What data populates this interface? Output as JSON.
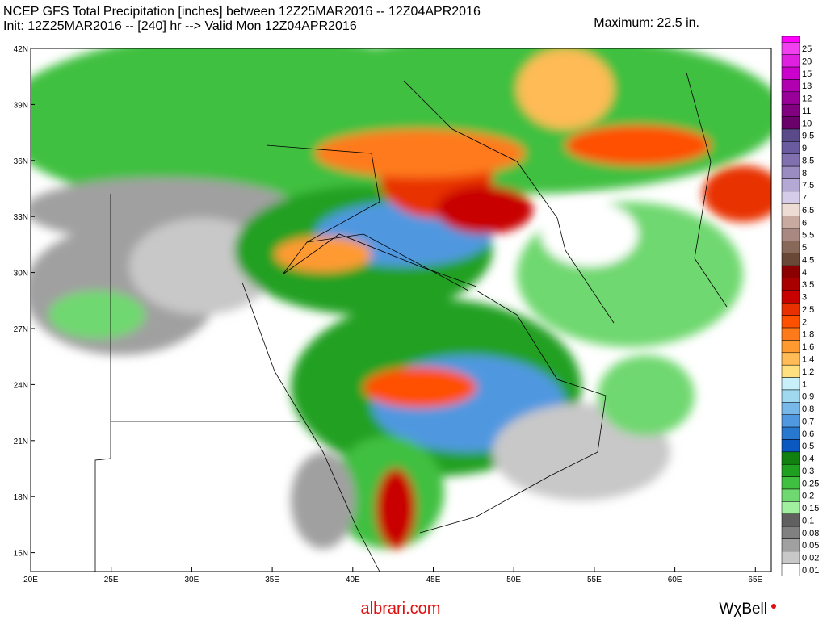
{
  "header": {
    "title_line1": "NCEP GFS Total Precipitation [inches] between 12Z25MAR2016 -- 12Z04APR2016",
    "title_line2": "Init: 12Z25MAR2016 -- [240] hr --> Valid Mon 12Z04APR2016",
    "maximum": "Maximum: 22.5 in."
  },
  "map": {
    "lat_labels": [
      "42N",
      "39N",
      "36N",
      "33N",
      "30N",
      "27N",
      "24N",
      "21N",
      "18N",
      "15N"
    ],
    "lon_labels": [
      "20E",
      "25E",
      "30E",
      "35E",
      "40E",
      "45E",
      "50E",
      "55E",
      "60E",
      "65E"
    ]
  },
  "colorbar": [
    {
      "label": "25",
      "color": "#f040f0"
    },
    {
      "label": "20",
      "color": "#e020e0"
    },
    {
      "label": "15",
      "color": "#cc00cc"
    },
    {
      "label": "13",
      "color": "#b000b0"
    },
    {
      "label": "12",
      "color": "#990099"
    },
    {
      "label": "11",
      "color": "#800080"
    },
    {
      "label": "10",
      "color": "#6a006a"
    },
    {
      "label": "9.5",
      "color": "#5a4a8a"
    },
    {
      "label": "9",
      "color": "#6a5aa0"
    },
    {
      "label": "8.5",
      "color": "#8070b0"
    },
    {
      "label": "8",
      "color": "#9a8cc0"
    },
    {
      "label": "7.5",
      "color": "#b4a8d4"
    },
    {
      "label": "7",
      "color": "#d4cce8"
    },
    {
      "label": "6.5",
      "color": "#ecdcd4"
    },
    {
      "label": "6",
      "color": "#c8aaa0"
    },
    {
      "label": "5.5",
      "color": "#a88880"
    },
    {
      "label": "5",
      "color": "#886858"
    },
    {
      "label": "4.5",
      "color": "#6a4838"
    },
    {
      "label": "4",
      "color": "#8b0000"
    },
    {
      "label": "3.5",
      "color": "#a80000"
    },
    {
      "label": "3",
      "color": "#c80000"
    },
    {
      "label": "2.5",
      "color": "#e83000"
    },
    {
      "label": "2",
      "color": "#ff5000"
    },
    {
      "label": "1.8",
      "color": "#ff7a1a"
    },
    {
      "label": "1.6",
      "color": "#ff9a30"
    },
    {
      "label": "1.4",
      "color": "#ffbb55"
    },
    {
      "label": "1.2",
      "color": "#ffe080"
    },
    {
      "label": "1",
      "color": "#c8f0f8"
    },
    {
      "label": "0.9",
      "color": "#a0d8f0"
    },
    {
      "label": "0.8",
      "color": "#78b8e8"
    },
    {
      "label": "0.7",
      "color": "#5098e0"
    },
    {
      "label": "0.6",
      "color": "#2878d0"
    },
    {
      "label": "0.5",
      "color": "#0a58c0"
    },
    {
      "label": "0.4",
      "color": "#108010"
    },
    {
      "label": "0.3",
      "color": "#20a020"
    },
    {
      "label": "0.25",
      "color": "#40c040"
    },
    {
      "label": "0.2",
      "color": "#70d870"
    },
    {
      "label": "0.15",
      "color": "#a0f0a0"
    },
    {
      "label": "0.1",
      "color": "#606060"
    },
    {
      "label": "0.08",
      "color": "#808080"
    },
    {
      "label": "0.05",
      "color": "#a0a0a0"
    },
    {
      "label": "0.02",
      "color": "#c8c8c8"
    },
    {
      "label": "0.01",
      "color": "#ffffff"
    }
  ],
  "footer": {
    "site": "albrari.com",
    "brand": "WχBell"
  }
}
